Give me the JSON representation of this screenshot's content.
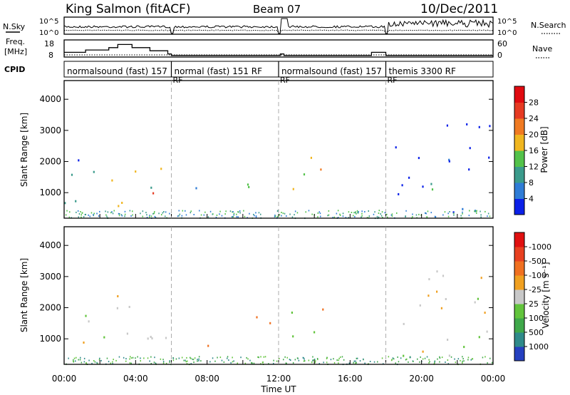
{
  "header": {
    "station": "King Salmon (fitACF)",
    "beam": "Beam 07",
    "date": "10/Dec/2011"
  },
  "strips": {
    "nsky_label": "N.Sky",
    "freq_label": "Freq.",
    "freq_unit": "[MHz]",
    "cpid_label": "CPID",
    "nsearch_label": "N.Search",
    "nave_label": "Nave",
    "noise_ticks_left": [
      "10^5",
      "10^0"
    ],
    "noise_ticks_right": [
      "10^5",
      "10^0"
    ],
    "freq_ticks_left": [
      "18",
      "8"
    ],
    "nave_ticks_right": [
      "60",
      "0"
    ],
    "cpid_segments": [
      {
        "name": "normalsound (fast)",
        "id": "157",
        "start": 0,
        "end": 6
      },
      {
        "name": "normal (fast)",
        "id": "151",
        "suffix": "RF",
        "continuation": "RF",
        "start": 6,
        "end": 12
      },
      {
        "name": "normalsound (fast)",
        "id": "157",
        "continuation": "RF",
        "start": 12,
        "end": 18
      },
      {
        "name": "themis",
        "id": "3300",
        "suffix": "RF",
        "continuation": "RF",
        "start": 18,
        "end": 24
      }
    ],
    "freq_steps": [
      [
        0,
        11
      ],
      [
        1.2,
        12.5
      ],
      [
        2.5,
        14
      ],
      [
        3.0,
        16
      ],
      [
        3.8,
        14
      ],
      [
        4.8,
        12
      ],
      [
        5.8,
        10
      ],
      [
        6,
        9
      ],
      [
        12,
        9
      ],
      [
        12.1,
        10
      ],
      [
        12.3,
        9
      ],
      [
        17.2,
        11
      ],
      [
        18,
        9
      ],
      [
        24,
        9
      ]
    ]
  },
  "chart_data": [
    {
      "type": "heatmap",
      "panel": "power",
      "ylabel": "Slant Range [km]",
      "ylim": [
        180,
        4600
      ],
      "yticks": [
        1000,
        2000,
        3000,
        4000
      ],
      "xlim": [
        0,
        24
      ],
      "colorbar": {
        "label": "Power [dB]",
        "ticks": [
          "4",
          "8",
          "12",
          "16",
          "20",
          "24",
          "28"
        ],
        "colors": [
          "#0b20e8",
          "#2f7cd6",
          "#3b9b8c",
          "#53c24a",
          "#f0b620",
          "#f07a22",
          "#e63a22",
          "#e00a10"
        ]
      },
      "blobs": [
        {
          "t0": 0.0,
          "t1": 5.9,
          "r0": 600,
          "r1": 2500,
          "level": 0.55
        },
        {
          "t0": 7.3,
          "t1": 8.2,
          "r0": 700,
          "r1": 1900,
          "level": 0.45
        },
        {
          "t0": 9.8,
          "t1": 11.8,
          "r0": 1100,
          "r1": 1900,
          "level": 0.35
        },
        {
          "t0": 12.3,
          "t1": 15.0,
          "r0": 900,
          "r1": 2400,
          "level": 0.55
        },
        {
          "t0": 18.2,
          "t1": 24.0,
          "r0": 400,
          "r1": 3500,
          "level": 0.2
        }
      ]
    },
    {
      "type": "heatmap",
      "panel": "velocity",
      "ylabel": "Slant Range [km]",
      "ylim": [
        180,
        4600
      ],
      "yticks": [
        1000,
        2000,
        3000,
        4000
      ],
      "xlim": [
        0,
        24
      ],
      "xticks": [
        "00:00",
        "04:00",
        "08:00",
        "12:00",
        "16:00",
        "20:00",
        "00:00"
      ],
      "xlabel": "Time UT",
      "colorbar": {
        "label": "Velocity [m s⁻¹]",
        "ticks": [
          "1000",
          "500",
          "100",
          "25",
          "-25",
          "-100",
          "-500",
          "-1000"
        ],
        "colors": [
          "#2540c0",
          "#2f8a8a",
          "#3fa84a",
          "#62c43c",
          "#c8c8c8",
          "#f0a020",
          "#f07020",
          "#e84020",
          "#e01010"
        ]
      }
    }
  ]
}
